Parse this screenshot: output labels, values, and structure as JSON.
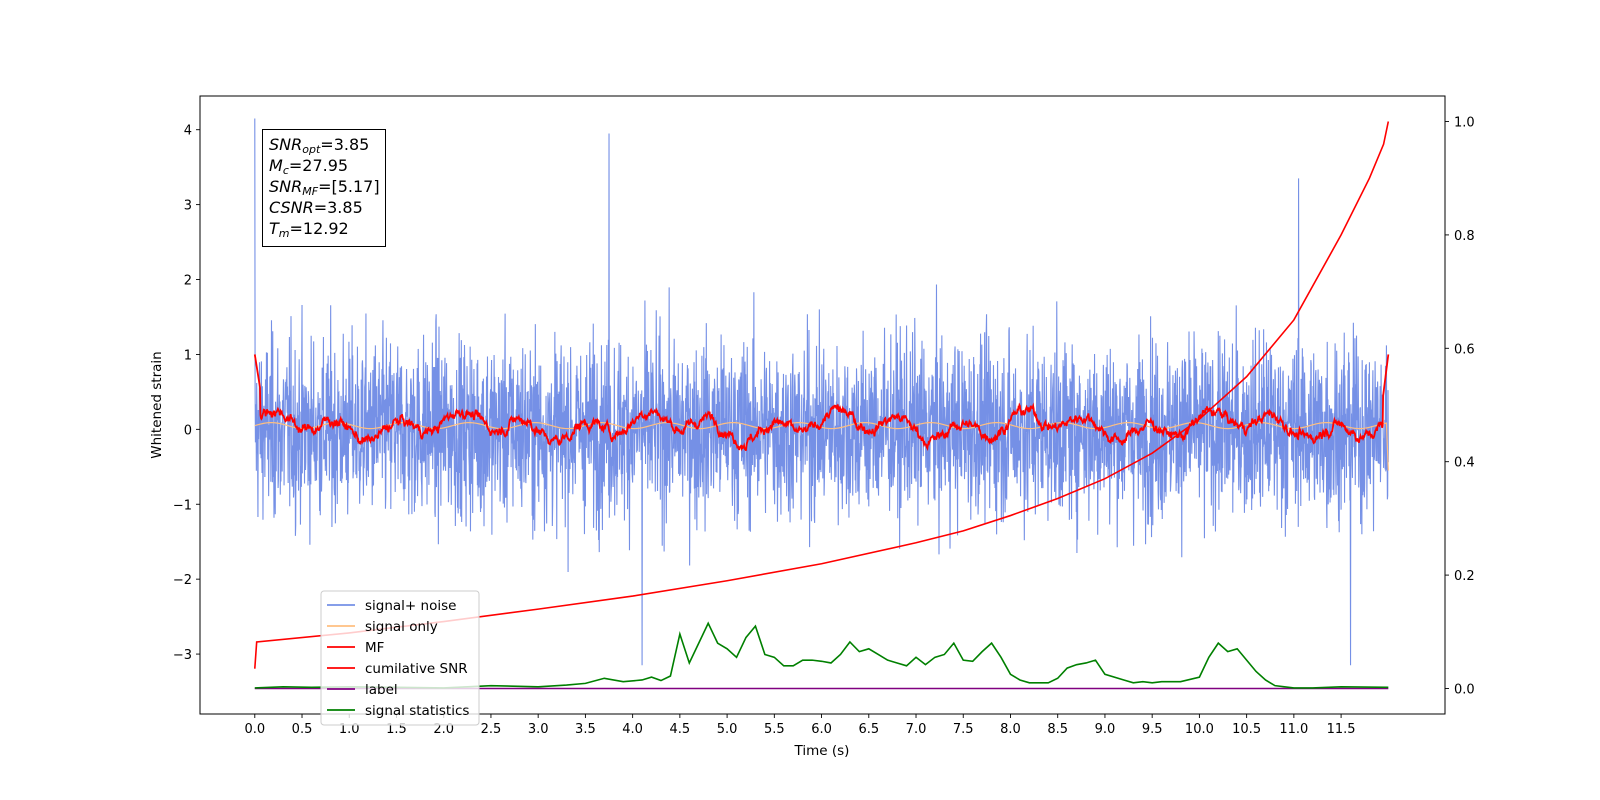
{
  "chart_data": {
    "type": "line",
    "xlabel": "Time (s)",
    "ylabel": "Whitened strain",
    "xlim": [
      -0.58,
      12.6
    ],
    "ylim": [
      -3.8,
      4.45
    ],
    "y2lim": [
      -0.045,
      1.045
    ],
    "x_ticks": [
      "0.0",
      "0.5",
      "1.0",
      "1.5",
      "2.0",
      "2.5",
      "3.0",
      "3.5",
      "4.0",
      "4.5",
      "5.0",
      "5.5",
      "6.0",
      "6.5",
      "7.0",
      "7.5",
      "8.0",
      "8.5",
      "9.0",
      "9.5",
      "10.0",
      "10.5",
      "11.0",
      "11.5"
    ],
    "y_ticks": [
      "−3",
      "−2",
      "−1",
      "0",
      "1",
      "2",
      "3",
      "4"
    ],
    "y2_ticks": [
      "0.0",
      "0.2",
      "0.4",
      "0.6",
      "0.8",
      "1.0"
    ],
    "annotation": {
      "snr_opt": {
        "base": "SNR",
        "sub": "opt",
        "value": "=3.85"
      },
      "mc": {
        "base": "M",
        "sub": "c",
        "value": "=27.95"
      },
      "snr_mf": {
        "base": "SNR",
        "sub": "MF",
        "value": "=[5.17]"
      },
      "csnr": {
        "base": "CSNR",
        "sub": "",
        "value": "=3.85"
      },
      "tm": {
        "base": "T",
        "sub": "m",
        "value": "=12.92"
      }
    },
    "legend": {
      "placement": "lower left",
      "entries": [
        {
          "label": "signal+ noise",
          "color": "#7590e6"
        },
        {
          "label": "signal only",
          "color": "#ffbf80"
        },
        {
          "label": "MF",
          "color": "#ff0000"
        },
        {
          "label": "cumilative SNR",
          "color": "#ff0000"
        },
        {
          "label": "label",
          "color": "#800080"
        },
        {
          "label": "signal statistics",
          "color": "#008000"
        }
      ]
    },
    "series": [
      {
        "name": "signal+ noise",
        "axis": "left",
        "color": "#7590e6",
        "x_range": [
          0.0,
          12.0
        ],
        "approx_range": [
          -3.2,
          4.2
        ],
        "spikes": [
          [
            0.0,
            4.15
          ],
          [
            3.75,
            3.95
          ],
          [
            11.05,
            3.35
          ],
          [
            11.6,
            -3.15
          ],
          [
            4.1,
            -3.15
          ]
        ]
      },
      {
        "name": "signal only",
        "axis": "left",
        "color": "#ffbf80",
        "x_range": [
          0.0,
          12.0
        ],
        "values_approx": 0.05
      },
      {
        "name": "MF",
        "axis": "left",
        "color": "#ff0000",
        "x_range": [
          0.0,
          12.0
        ],
        "approx_range": [
          -0.3,
          0.55
        ],
        "end_values": [
          1.0,
          1.0
        ]
      },
      {
        "name": "cumilative SNR",
        "axis": "right",
        "color": "#ff0000",
        "x": [
          0.0,
          0.02,
          1.0,
          2.0,
          3.0,
          4.0,
          5.0,
          6.0,
          7.0,
          7.5,
          8.0,
          8.5,
          9.0,
          9.5,
          10.0,
          10.5,
          11.0,
          11.5,
          11.8,
          11.95,
          12.0
        ],
        "y": [
          0.035,
          0.082,
          0.098,
          0.118,
          0.14,
          0.163,
          0.19,
          0.22,
          0.257,
          0.278,
          0.305,
          0.335,
          0.37,
          0.415,
          0.475,
          0.55,
          0.65,
          0.8,
          0.9,
          0.96,
          1.0
        ]
      },
      {
        "name": "label",
        "axis": "right",
        "color": "#800080",
        "x": [
          0.0,
          12.0
        ],
        "y": [
          0.0,
          0.0
        ]
      },
      {
        "name": "signal statistics",
        "axis": "right",
        "color": "#008000",
        "x": [
          0.0,
          0.3,
          0.6,
          1.0,
          1.5,
          2.0,
          2.5,
          3.0,
          3.3,
          3.5,
          3.7,
          3.9,
          4.1,
          4.2,
          4.3,
          4.4,
          4.5,
          4.6,
          4.7,
          4.8,
          4.9,
          5.0,
          5.1,
          5.2,
          5.3,
          5.4,
          5.5,
          5.6,
          5.7,
          5.8,
          5.9,
          6.0,
          6.1,
          6.2,
          6.3,
          6.4,
          6.5,
          6.6,
          6.7,
          6.8,
          6.9,
          7.0,
          7.1,
          7.2,
          7.3,
          7.4,
          7.5,
          7.6,
          7.7,
          7.8,
          7.9,
          8.0,
          8.1,
          8.2,
          8.4,
          8.5,
          8.6,
          8.7,
          8.8,
          8.9,
          9.0,
          9.2,
          9.3,
          9.4,
          9.5,
          9.6,
          9.8,
          10.0,
          10.1,
          10.2,
          10.3,
          10.4,
          10.5,
          10.6,
          10.7,
          10.8,
          11.0,
          11.2,
          11.5,
          12.0
        ],
        "y": [
          0.001,
          0.003,
          0.002,
          0.003,
          0.002,
          0.001,
          0.005,
          0.003,
          0.006,
          0.009,
          0.018,
          0.012,
          0.015,
          0.02,
          0.014,
          0.022,
          0.096,
          0.045,
          0.08,
          0.115,
          0.08,
          0.07,
          0.055,
          0.09,
          0.11,
          0.06,
          0.055,
          0.04,
          0.04,
          0.05,
          0.05,
          0.048,
          0.045,
          0.06,
          0.082,
          0.065,
          0.07,
          0.06,
          0.05,
          0.045,
          0.04,
          0.055,
          0.042,
          0.055,
          0.06,
          0.08,
          0.05,
          0.048,
          0.065,
          0.08,
          0.055,
          0.025,
          0.015,
          0.01,
          0.01,
          0.018,
          0.036,
          0.042,
          0.045,
          0.05,
          0.025,
          0.015,
          0.01,
          0.012,
          0.01,
          0.012,
          0.012,
          0.02,
          0.055,
          0.08,
          0.065,
          0.07,
          0.05,
          0.03,
          0.015,
          0.005,
          0.001,
          0.001,
          0.003,
          0.002
        ]
      }
    ]
  }
}
